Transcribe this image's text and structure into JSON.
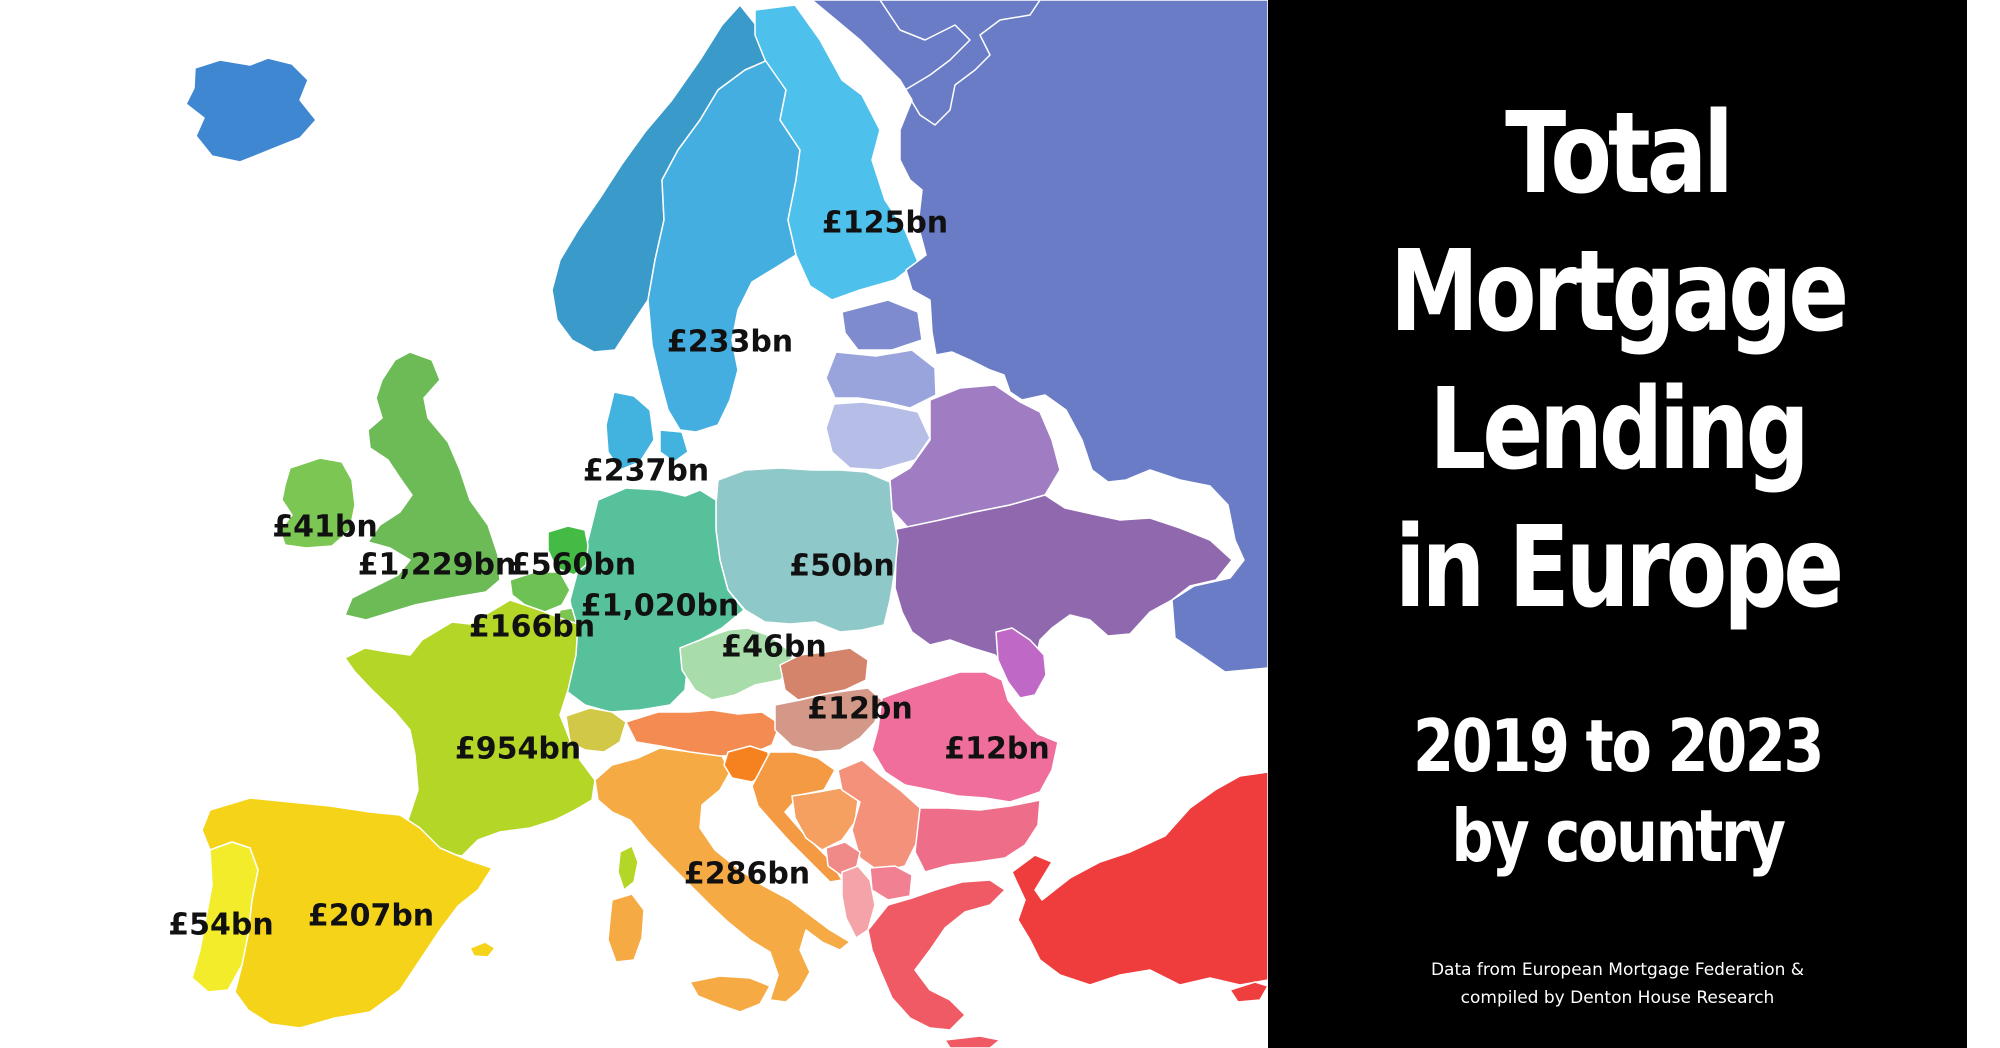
{
  "title": {
    "lines": [
      "Total",
      "Mortgage",
      "Lending",
      "in Europe"
    ]
  },
  "subtitle": {
    "lines": [
      "2019 to 2023",
      "by country"
    ]
  },
  "source": {
    "lines": [
      "Data from European Mortgage Federation &",
      "compiled by Denton House Research"
    ]
  },
  "map": {
    "regions": [
      {
        "name": "Iceland",
        "color": "#3f87d0"
      },
      {
        "name": "Norway",
        "color": "#3a9bca"
      },
      {
        "name": "Sweden",
        "color": "#45aee0"
      },
      {
        "name": "Finland",
        "color": "#4ec0ec"
      },
      {
        "name": "Russia",
        "color": "#6a7cc6"
      },
      {
        "name": "Estonia",
        "color": "#7e8ccf"
      },
      {
        "name": "Latvia",
        "color": "#9aa4dc"
      },
      {
        "name": "Lithuania",
        "color": "#b6bde6"
      },
      {
        "name": "Belarus",
        "color": "#a07cc2"
      },
      {
        "name": "Ukraine",
        "color": "#8f68ae"
      },
      {
        "name": "Moldova",
        "color": "#c068c6"
      },
      {
        "name": "Poland",
        "color": "#8ec8c8"
      },
      {
        "name": "Denmark",
        "color": "#42b2de"
      },
      {
        "name": "Germany",
        "color": "#56c19a"
      },
      {
        "name": "Netherlands",
        "color": "#44bb44"
      },
      {
        "name": "Belgium",
        "color": "#6ec254"
      },
      {
        "name": "Luxembourg",
        "color": "#7dc450"
      },
      {
        "name": "United Kingdom",
        "color": "#6cbb56"
      },
      {
        "name": "Ireland",
        "color": "#7cc654"
      },
      {
        "name": "France",
        "color": "#b4d626"
      },
      {
        "name": "Switzerland",
        "color": "#d2c848"
      },
      {
        "name": "Spain",
        "color": "#f5d319"
      },
      {
        "name": "Portugal",
        "color": "#f2ec2a"
      },
      {
        "name": "Italy",
        "color": "#f5aa44"
      },
      {
        "name": "Austria",
        "color": "#f38b52"
      },
      {
        "name": "Czechia",
        "color": "#a8dcab"
      },
      {
        "name": "Slovakia",
        "color": "#d4846a"
      },
      {
        "name": "Hungary",
        "color": "#d49888"
      },
      {
        "name": "Slovenia",
        "color": "#f5821e"
      },
      {
        "name": "Croatia",
        "color": "#f49a42"
      },
      {
        "name": "Bosnia",
        "color": "#f5a060"
      },
      {
        "name": "Serbia",
        "color": "#f4917a"
      },
      {
        "name": "Montenegro",
        "color": "#ef8a88"
      },
      {
        "name": "Albania",
        "color": "#f4a4a8"
      },
      {
        "name": "North Macedonia",
        "color": "#f08092"
      },
      {
        "name": "Bulgaria",
        "color": "#ee6e8a"
      },
      {
        "name": "Romania",
        "color": "#ef6e9c"
      },
      {
        "name": "Greece",
        "color": "#ef5a64"
      },
      {
        "name": "Turkey",
        "color": "#ef3c3c"
      },
      {
        "name": "Cyprus",
        "color": "#ef3e3e"
      },
      {
        "name": "Corsica",
        "color": "#b4d626"
      },
      {
        "name": "Sardinia",
        "color": "#f5aa44"
      },
      {
        "name": "Sicily",
        "color": "#f5aa44"
      },
      {
        "name": "Balearics",
        "color": "#f5d319"
      }
    ],
    "labels": [
      {
        "country": "Finland",
        "text": "£125bn"
      },
      {
        "country": "Sweden",
        "text": "£233bn"
      },
      {
        "country": "Denmark",
        "text": "£237bn"
      },
      {
        "country": "Ireland",
        "text": "£41bn"
      },
      {
        "country": "United Kingdom",
        "text": "£1,229bn"
      },
      {
        "country": "Netherlands",
        "text": "£560bn"
      },
      {
        "country": "Poland",
        "text": "£50bn"
      },
      {
        "country": "Germany",
        "text": "£1,020bn"
      },
      {
        "country": "Belgium",
        "text": "£166bn"
      },
      {
        "country": "Czechia",
        "text": "£46bn"
      },
      {
        "country": "Hungary",
        "text": "£12bn"
      },
      {
        "country": "France",
        "text": "£954bn"
      },
      {
        "country": "Romania",
        "text": "£12bn"
      },
      {
        "country": "Italy",
        "text": "£286bn"
      },
      {
        "country": "Spain",
        "text": "£207bn"
      },
      {
        "country": "Portugal",
        "text": "£54bn"
      }
    ]
  }
}
